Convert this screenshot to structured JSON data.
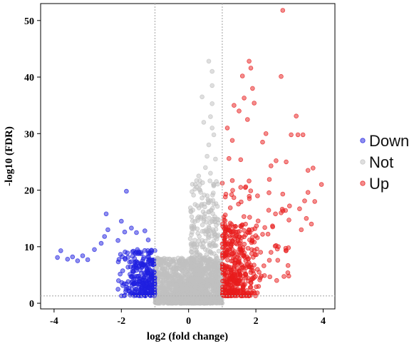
{
  "chart_data": {
    "type": "scatter",
    "xlabel": "log2 (fold change)",
    "ylabel": "-log10 (FDR)",
    "xlim": [
      -4.4,
      4.35
    ],
    "ylim": [
      -1.0,
      53.0
    ],
    "xticks": [
      -4,
      -2,
      0,
      2,
      4
    ],
    "yticks": [
      0,
      10,
      20,
      30,
      40,
      50
    ],
    "threshold_lines": {
      "x": [
        -1,
        1
      ],
      "y": [
        1.3
      ]
    },
    "grid": false,
    "legend_position": "right",
    "series": [
      {
        "name": "Down",
        "color": "#1f1fe0"
      },
      {
        "name": "Not",
        "color": "#c0c0c0"
      },
      {
        "name": "Up",
        "color": "#e81c1c"
      }
    ],
    "notable_points": {
      "Down": [
        {
          "x": -3.9,
          "y": 8.1
        },
        {
          "x": -3.8,
          "y": 9.3
        },
        {
          "x": -3.6,
          "y": 7.8
        },
        {
          "x": -3.45,
          "y": 8.2
        },
        {
          "x": -3.3,
          "y": 7.5
        },
        {
          "x": -3.15,
          "y": 8.4
        },
        {
          "x": -3.0,
          "y": 7.7
        },
        {
          "x": -2.8,
          "y": 9.5
        },
        {
          "x": -2.6,
          "y": 10.6
        },
        {
          "x": -2.5,
          "y": 11.8
        },
        {
          "x": -2.4,
          "y": 13.0
        },
        {
          "x": -2.1,
          "y": 11.1
        },
        {
          "x": -2.0,
          "y": 14.5
        },
        {
          "x": -1.9,
          "y": 12.6
        },
        {
          "x": -1.85,
          "y": 19.8
        },
        {
          "x": -1.7,
          "y": 13.3
        },
        {
          "x": -1.55,
          "y": 12.5
        },
        {
          "x": -1.3,
          "y": 12.8
        },
        {
          "x": -1.2,
          "y": 11.2
        },
        {
          "x": -2.45,
          "y": 15.8
        }
      ],
      "Not": [
        {
          "x": 0.6,
          "y": 42.8
        },
        {
          "x": 0.7,
          "y": 41.0
        },
        {
          "x": 0.7,
          "y": 38.5
        },
        {
          "x": 0.4,
          "y": 36.5
        },
        {
          "x": 0.7,
          "y": 35.3
        },
        {
          "x": 0.65,
          "y": 33.0
        },
        {
          "x": 0.45,
          "y": 32.0
        },
        {
          "x": 0.7,
          "y": 31.0
        },
        {
          "x": 0.75,
          "y": 29.8
        },
        {
          "x": 0.6,
          "y": 28.0
        },
        {
          "x": 0.55,
          "y": 26.0
        },
        {
          "x": 0.5,
          "y": 24.0
        },
        {
          "x": 0.8,
          "y": 25.5
        },
        {
          "x": 0.3,
          "y": 22.5
        },
        {
          "x": 0.2,
          "y": 21.0
        },
        {
          "x": 0.65,
          "y": 23.0
        }
      ],
      "Up": [
        {
          "x": 2.8,
          "y": 51.8
        },
        {
          "x": 1.8,
          "y": 42.8
        },
        {
          "x": 1.85,
          "y": 41.6
        },
        {
          "x": 2.75,
          "y": 40.1
        },
        {
          "x": 1.6,
          "y": 40.2
        },
        {
          "x": 1.65,
          "y": 36.3
        },
        {
          "x": 1.9,
          "y": 38.0
        },
        {
          "x": 1.5,
          "y": 34.0
        },
        {
          "x": 1.35,
          "y": 35.0
        },
        {
          "x": 1.95,
          "y": 35.4
        },
        {
          "x": 1.75,
          "y": 32.5
        },
        {
          "x": 3.2,
          "y": 33.1
        },
        {
          "x": 3.25,
          "y": 29.8
        },
        {
          "x": 3.4,
          "y": 29.8
        },
        {
          "x": 3.05,
          "y": 29.8
        },
        {
          "x": 2.3,
          "y": 30.0
        },
        {
          "x": 1.15,
          "y": 31.0
        },
        {
          "x": 1.3,
          "y": 28.8
        },
        {
          "x": 2.2,
          "y": 28.5
        },
        {
          "x": 1.2,
          "y": 25.6
        },
        {
          "x": 1.55,
          "y": 25.4
        },
        {
          "x": 2.6,
          "y": 25.2
        },
        {
          "x": 2.45,
          "y": 24.3
        },
        {
          "x": 2.9,
          "y": 25.0
        },
        {
          "x": 3.55,
          "y": 23.5
        },
        {
          "x": 3.7,
          "y": 23.9
        },
        {
          "x": 3.95,
          "y": 21.0
        },
        {
          "x": 3.55,
          "y": 19.6
        },
        {
          "x": 3.45,
          "y": 18.1
        },
        {
          "x": 3.75,
          "y": 18.0
        },
        {
          "x": 3.3,
          "y": 16.7
        },
        {
          "x": 3.5,
          "y": 15.0
        },
        {
          "x": 3.65,
          "y": 14.0
        },
        {
          "x": 3.35,
          "y": 13.0
        },
        {
          "x": 3.0,
          "y": 17.2
        },
        {
          "x": 2.75,
          "y": 16.0
        },
        {
          "x": 2.5,
          "y": 13.5
        },
        {
          "x": 2.6,
          "y": 10.2
        },
        {
          "x": 2.45,
          "y": 9.0
        },
        {
          "x": 2.9,
          "y": 9.3
        },
        {
          "x": 2.65,
          "y": 7.6
        },
        {
          "x": 2.95,
          "y": 5.4
        },
        {
          "x": 2.4,
          "y": 7.6
        },
        {
          "x": 2.2,
          "y": 12.2
        },
        {
          "x": 2.05,
          "y": 19.0
        },
        {
          "x": 1.7,
          "y": 20.6
        },
        {
          "x": 1.55,
          "y": 20.5
        },
        {
          "x": 1.3,
          "y": 21.7
        },
        {
          "x": 2.4,
          "y": 21.9
        },
        {
          "x": 2.8,
          "y": 19.3
        }
      ]
    },
    "cloud_params": {
      "Down": {
        "count": 300,
        "x_from": -2.15,
        "x_to": -1.0,
        "y_from": 1.3,
        "y_to": 9.5,
        "dense_edge": "right"
      },
      "Not": {
        "count": 1100,
        "x_from": -1.0,
        "x_to": 1.0,
        "y_from": 0.0,
        "y_to": 8.0
      },
      "Not_core": {
        "count": 350,
        "x_from": -0.35,
        "x_to": 0.55,
        "y_from": 0.0,
        "y_to": 3.5
      },
      "Not_column": {
        "count": 320,
        "x_from": 0.05,
        "x_to": 0.9,
        "y_from": 3.0,
        "y_to": 22.0
      },
      "Up_cloud": {
        "count": 380,
        "x_from": 1.0,
        "x_to": 2.2,
        "y_from": 1.3,
        "y_to": 14.0,
        "dense_edge": "left"
      },
      "Up_spread": {
        "count": 80,
        "x_from": 1.0,
        "x_to": 3.0,
        "y_from": 4.0,
        "y_to": 22.0
      }
    }
  }
}
